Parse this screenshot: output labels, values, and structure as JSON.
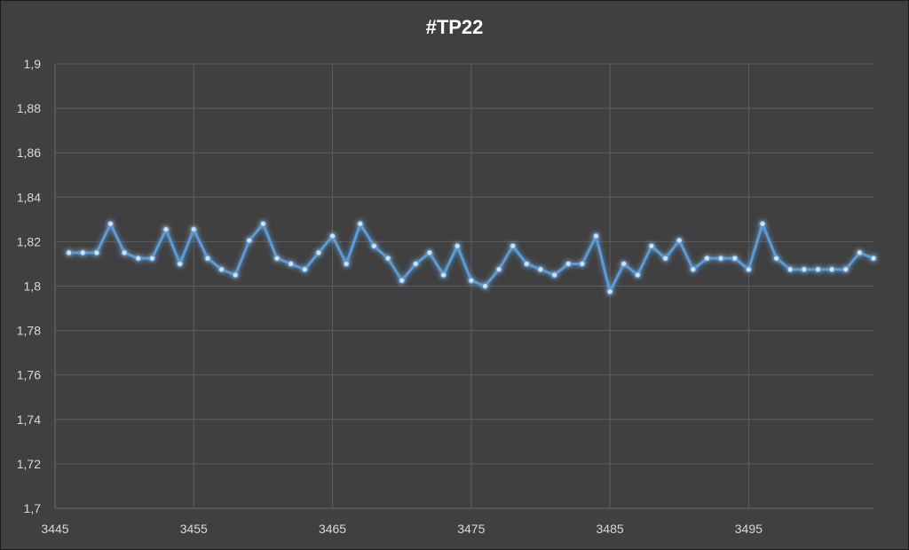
{
  "chart_data": {
    "type": "line",
    "title": "#TP22",
    "xlabel": "",
    "ylabel": "",
    "xlim": [
      3445,
      3504
    ],
    "ylim": [
      1.7,
      1.9
    ],
    "x_ticks": [
      "3445",
      "3455",
      "3465",
      "3475",
      "3485",
      "3495"
    ],
    "y_ticks": [
      "1,7",
      "1,72",
      "1,74",
      "1,76",
      "1,78",
      "1,8",
      "1,82",
      "1,84",
      "1,86",
      "1,88",
      "1,9"
    ],
    "grid": true,
    "legend": "none",
    "series": [
      {
        "color": "#5b9bd5",
        "x": [
          3446,
          3447,
          3448,
          3449,
          3450,
          3451,
          3452,
          3453,
          3454,
          3455,
          3456,
          3457,
          3458,
          3459,
          3460,
          3461,
          3462,
          3463,
          3464,
          3465,
          3466,
          3467,
          3468,
          3469,
          3470,
          3471,
          3472,
          3473,
          3474,
          3475,
          3476,
          3477,
          3478,
          3479,
          3480,
          3481,
          3482,
          3483,
          3484,
          3485,
          3486,
          3487,
          3488,
          3489,
          3490,
          3491,
          3492,
          3493,
          3494,
          3495,
          3496,
          3497,
          3498,
          3499,
          3500,
          3501,
          3502,
          3503,
          3504
        ],
        "values": [
          1.815,
          1.815,
          1.815,
          1.828,
          1.815,
          1.8125,
          1.8125,
          1.8255,
          1.81,
          1.8255,
          1.8125,
          1.8075,
          1.805,
          1.8205,
          1.828,
          1.8125,
          1.81,
          1.8075,
          1.815,
          1.8225,
          1.81,
          1.828,
          1.818,
          1.8125,
          1.8025,
          1.81,
          1.815,
          1.805,
          1.818,
          1.8025,
          1.8,
          1.8075,
          1.818,
          1.81,
          1.8075,
          1.805,
          1.81,
          1.81,
          1.8225,
          1.7975,
          1.81,
          1.805,
          1.818,
          1.8125,
          1.8205,
          1.8075,
          1.8125,
          1.8125,
          1.8125,
          1.8075,
          1.828,
          1.8125,
          1.8075,
          1.8075,
          1.8075,
          1.8075,
          1.8075,
          1.815,
          1.8125
        ]
      }
    ]
  }
}
